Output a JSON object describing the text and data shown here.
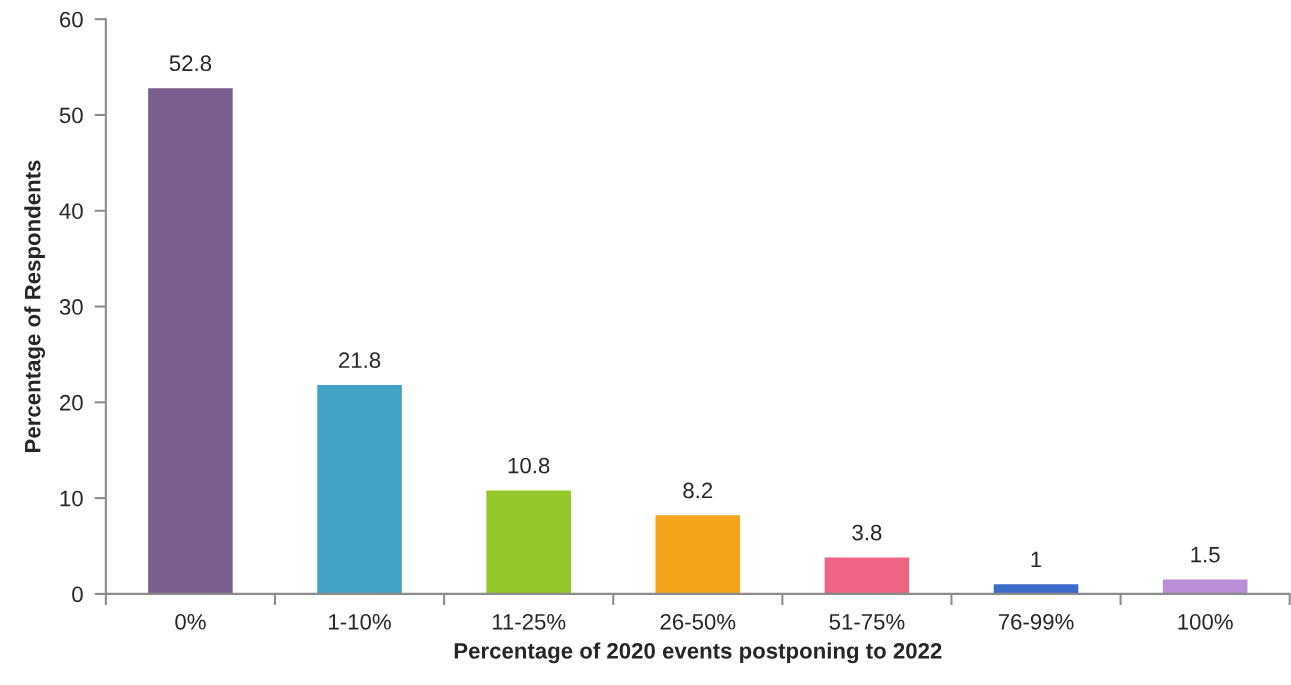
{
  "chart_data": {
    "type": "bar",
    "xlabel": "Percentage of 2020 events postponing to 2022",
    "ylabel": "Percentage of Respondents",
    "categories": [
      "0%",
      "1-10%",
      "11-25%",
      "26-50%",
      "51-75%",
      "76-99%",
      "100%"
    ],
    "values": [
      52.8,
      21.8,
      10.8,
      8.2,
      3.8,
      1,
      1.5
    ],
    "colors": [
      "#7b5f8e",
      "#41a2c3",
      "#94c72a",
      "#f4a31b",
      "#ef6384",
      "#3c6bcb",
      "#bb8ed8"
    ],
    "ylim": [
      0,
      60
    ],
    "yticks": [
      0,
      10,
      20,
      30,
      40,
      50,
      60
    ],
    "data_labels": true
  }
}
